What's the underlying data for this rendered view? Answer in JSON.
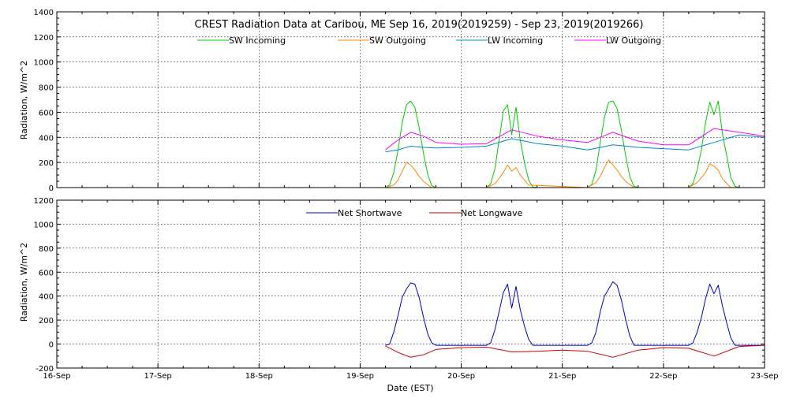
{
  "chart_data": [
    {
      "type": "line",
      "title": "CREST Radiation Data at Caribou, ME   Sep 16, 2019(2019259) - Sep 23, 2019(2019266)",
      "ylabel": "Radiation, W/m^2",
      "xlabel": "",
      "xlim": [
        "2019-09-16 00:00",
        "2019-09-23 00:00"
      ],
      "ylim": [
        0,
        1400
      ],
      "yticks": [
        0,
        200,
        400,
        600,
        800,
        1000,
        1200,
        1400
      ],
      "grid": true,
      "legend": "top-center",
      "series": [
        {
          "name": "SW Incoming",
          "color": "#00cc00",
          "x": [
            "2019-09-19 06:00",
            "2019-09-19 07:00",
            "2019-09-19 08:00",
            "2019-09-19 09:00",
            "2019-09-19 10:00",
            "2019-09-19 11:00",
            "2019-09-19 12:00",
            "2019-09-19 13:00",
            "2019-09-19 14:00",
            "2019-09-19 15:00",
            "2019-09-19 16:00",
            "2019-09-19 17:00",
            "2019-09-19 18:00",
            "2019-09-20 06:00",
            "2019-09-20 07:00",
            "2019-09-20 08:00",
            "2019-09-20 09:00",
            "2019-09-20 10:00",
            "2019-09-20 11:00",
            "2019-09-20 12:00",
            "2019-09-20 13:00",
            "2019-09-20 14:00",
            "2019-09-20 15:00",
            "2019-09-20 16:00",
            "2019-09-20 17:00",
            "2019-09-20 18:00",
            "2019-09-21 06:00",
            "2019-09-21 07:00",
            "2019-09-21 08:00",
            "2019-09-21 09:00",
            "2019-09-21 10:00",
            "2019-09-21 11:00",
            "2019-09-21 12:00",
            "2019-09-21 13:00",
            "2019-09-21 14:00",
            "2019-09-21 15:00",
            "2019-09-21 16:00",
            "2019-09-21 17:00",
            "2019-09-21 18:00",
            "2019-09-22 06:00",
            "2019-09-22 07:00",
            "2019-09-22 08:00",
            "2019-09-22 09:00",
            "2019-09-22 10:00",
            "2019-09-22 11:00",
            "2019-09-22 12:00",
            "2019-09-22 13:00",
            "2019-09-22 14:00",
            "2019-09-22 15:00",
            "2019-09-22 16:00",
            "2019-09-22 17:00",
            "2019-09-22 18:00"
          ],
          "values": [
            0,
            20,
            120,
            300,
            520,
            660,
            690,
            640,
            480,
            280,
            110,
            15,
            0,
            0,
            30,
            150,
            380,
            610,
            660,
            420,
            640,
            380,
            200,
            60,
            5,
            0,
            0,
            25,
            140,
            360,
            560,
            680,
            690,
            630,
            460,
            260,
            90,
            10,
            0,
            0,
            30,
            140,
            300,
            520,
            680,
            580,
            690,
            430,
            260,
            80,
            10,
            0
          ]
        },
        {
          "name": "SW Outgoing",
          "color": "#ff8800",
          "x": [
            "2019-09-19 06:00",
            "2019-09-19 08:00",
            "2019-09-19 09:00",
            "2019-09-19 10:00",
            "2019-09-19 11:00",
            "2019-09-19 12:00",
            "2019-09-19 13:00",
            "2019-09-19 14:00",
            "2019-09-19 15:00",
            "2019-09-19 17:00",
            "2019-09-20 06:00",
            "2019-09-20 08:00",
            "2019-09-20 10:00",
            "2019-09-20 11:00",
            "2019-09-20 12:00",
            "2019-09-20 13:00",
            "2019-09-20 14:00",
            "2019-09-20 16:00",
            "2019-09-21 06:00",
            "2019-09-21 08:00",
            "2019-09-21 09:00",
            "2019-09-21 10:00",
            "2019-09-21 11:00",
            "2019-09-21 12:00",
            "2019-09-21 13:00",
            "2019-09-21 14:00",
            "2019-09-21 15:00",
            "2019-09-21 17:00",
            "2019-09-22 06:00",
            "2019-09-22 08:00",
            "2019-09-22 10:00",
            "2019-09-22 11:00",
            "2019-09-22 12:00",
            "2019-09-22 13:00",
            "2019-09-22 14:00",
            "2019-09-22 16:00"
          ],
          "values": [
            0,
            20,
            60,
            130,
            200,
            180,
            140,
            90,
            50,
            0,
            0,
            30,
            120,
            180,
            130,
            160,
            100,
            20,
            0,
            40,
            90,
            160,
            220,
            180,
            140,
            90,
            50,
            0,
            0,
            40,
            120,
            190,
            170,
            140,
            70,
            0
          ]
        },
        {
          "name": "LW Incoming",
          "color": "#0088cc",
          "x": [
            "2019-09-19 06:00",
            "2019-09-19 09:00",
            "2019-09-19 12:00",
            "2019-09-19 15:00",
            "2019-09-19 18:00",
            "2019-09-20 00:00",
            "2019-09-20 06:00",
            "2019-09-20 12:00",
            "2019-09-20 18:00",
            "2019-09-21 00:00",
            "2019-09-21 06:00",
            "2019-09-21 12:00",
            "2019-09-21 18:00",
            "2019-09-22 00:00",
            "2019-09-22 06:00",
            "2019-09-22 12:00",
            "2019-09-22 18:00",
            "2019-09-23 00:00"
          ],
          "values": [
            285,
            300,
            330,
            320,
            315,
            320,
            330,
            390,
            350,
            330,
            300,
            340,
            320,
            310,
            300,
            360,
            420,
            400
          ]
        },
        {
          "name": "LW Outgoing",
          "color": "#ff00ff",
          "x": [
            "2019-09-19 06:00",
            "2019-09-19 09:00",
            "2019-09-19 12:00",
            "2019-09-19 15:00",
            "2019-09-19 18:00",
            "2019-09-20 00:00",
            "2019-09-20 06:00",
            "2019-09-20 12:00",
            "2019-09-20 18:00",
            "2019-09-21 00:00",
            "2019-09-21 06:00",
            "2019-09-21 12:00",
            "2019-09-21 18:00",
            "2019-09-22 00:00",
            "2019-09-22 06:00",
            "2019-09-22 12:00",
            "2019-09-22 18:00",
            "2019-09-23 00:00"
          ],
          "values": [
            300,
            380,
            440,
            410,
            360,
            345,
            350,
            460,
            410,
            380,
            360,
            440,
            370,
            340,
            340,
            470,
            440,
            410
          ]
        }
      ]
    },
    {
      "type": "line",
      "title": "",
      "ylabel": "Radiation, W/m^2",
      "xlabel": "Date (EST)",
      "xlim": [
        "2019-09-16 00:00",
        "2019-09-23 00:00"
      ],
      "ylim": [
        -200,
        1200
      ],
      "yticks": [
        -200,
        0,
        200,
        400,
        600,
        800,
        1000,
        1200
      ],
      "xticks": [
        "16-Sep",
        "17-Sep",
        "18-Sep",
        "19-Sep",
        "20-Sep",
        "21-Sep",
        "22-Sep",
        "23-Sep"
      ],
      "grid": true,
      "legend": "top-center",
      "series": [
        {
          "name": "Net Shortwave",
          "color": "#0000cc",
          "x": [
            "2019-09-19 06:00",
            "2019-09-19 07:00",
            "2019-09-19 08:00",
            "2019-09-19 09:00",
            "2019-09-19 10:00",
            "2019-09-19 11:00",
            "2019-09-19 12:00",
            "2019-09-19 13:00",
            "2019-09-19 14:00",
            "2019-09-19 15:00",
            "2019-09-19 16:00",
            "2019-09-19 17:00",
            "2019-09-19 18:00",
            "2019-09-20 06:00",
            "2019-09-20 07:00",
            "2019-09-20 08:00",
            "2019-09-20 09:00",
            "2019-09-20 10:00",
            "2019-09-20 11:00",
            "2019-09-20 12:00",
            "2019-09-20 13:00",
            "2019-09-20 14:00",
            "2019-09-20 15:00",
            "2019-09-20 16:00",
            "2019-09-20 17:00",
            "2019-09-20 18:00",
            "2019-09-21 06:00",
            "2019-09-21 07:00",
            "2019-09-21 08:00",
            "2019-09-21 09:00",
            "2019-09-21 10:00",
            "2019-09-21 11:00",
            "2019-09-21 12:00",
            "2019-09-21 13:00",
            "2019-09-21 14:00",
            "2019-09-21 15:00",
            "2019-09-21 16:00",
            "2019-09-21 17:00",
            "2019-09-21 18:00",
            "2019-09-22 06:00",
            "2019-09-22 07:00",
            "2019-09-22 08:00",
            "2019-09-22 09:00",
            "2019-09-22 10:00",
            "2019-09-22 11:00",
            "2019-09-22 12:00",
            "2019-09-22 13:00",
            "2019-09-22 14:00",
            "2019-09-22 15:00",
            "2019-09-22 16:00",
            "2019-09-22 17:00",
            "2019-09-22 18:00",
            "2019-09-23 00:00"
          ],
          "values": [
            -10,
            0,
            100,
            240,
            390,
            460,
            510,
            500,
            390,
            230,
            90,
            10,
            -10,
            -10,
            10,
            120,
            270,
            430,
            500,
            300,
            480,
            290,
            150,
            40,
            -10,
            -10,
            -10,
            10,
            100,
            270,
            400,
            460,
            520,
            490,
            370,
            210,
            70,
            -10,
            -10,
            -10,
            10,
            100,
            220,
            380,
            500,
            420,
            490,
            320,
            180,
            50,
            -10,
            -10,
            -10
          ]
        },
        {
          "name": "Net Longwave",
          "color": "#cc0000",
          "x": [
            "2019-09-19 06:00",
            "2019-09-19 09:00",
            "2019-09-19 12:00",
            "2019-09-19 15:00",
            "2019-09-19 18:00",
            "2019-09-20 00:00",
            "2019-09-20 06:00",
            "2019-09-20 12:00",
            "2019-09-20 18:00",
            "2019-09-21 00:00",
            "2019-09-21 06:00",
            "2019-09-21 12:00",
            "2019-09-21 18:00",
            "2019-09-22 00:00",
            "2019-09-22 06:00",
            "2019-09-22 12:00",
            "2019-09-22 18:00",
            "2019-09-23 00:00"
          ],
          "values": [
            -15,
            -70,
            -110,
            -90,
            -45,
            -30,
            -25,
            -65,
            -60,
            -50,
            -60,
            -110,
            -50,
            -30,
            -35,
            -100,
            -20,
            -10
          ]
        }
      ]
    }
  ]
}
